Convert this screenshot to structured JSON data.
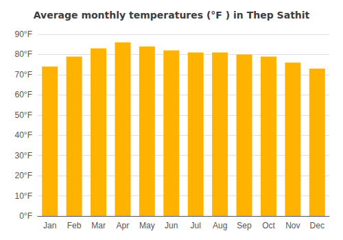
{
  "chart_data": {
    "type": "bar",
    "title": "Average monthly temperatures (°F ) in Thep Sathit",
    "categories": [
      "Jan",
      "Feb",
      "Mar",
      "Apr",
      "May",
      "Jun",
      "Jul",
      "Aug",
      "Sep",
      "Oct",
      "Nov",
      "Dec"
    ],
    "values": [
      74,
      79,
      83,
      86,
      84,
      82,
      81,
      81,
      80,
      79,
      76,
      73
    ],
    "color": "#FFB300",
    "ylim": [
      0,
      90
    ],
    "yticks": [
      {
        "value": 0,
        "label": "0°F"
      },
      {
        "value": 10,
        "label": "10°F"
      },
      {
        "value": 20,
        "label": "20°F"
      },
      {
        "value": 30,
        "label": "30°F"
      },
      {
        "value": 40,
        "label": "40°F"
      },
      {
        "value": 50,
        "label": "50°F"
      },
      {
        "value": 60,
        "label": "60°F"
      },
      {
        "value": 70,
        "label": "70°F"
      },
      {
        "value": 80,
        "label": "80°F"
      },
      {
        "value": 90,
        "label": "90°F"
      }
    ],
    "grid": true
  }
}
